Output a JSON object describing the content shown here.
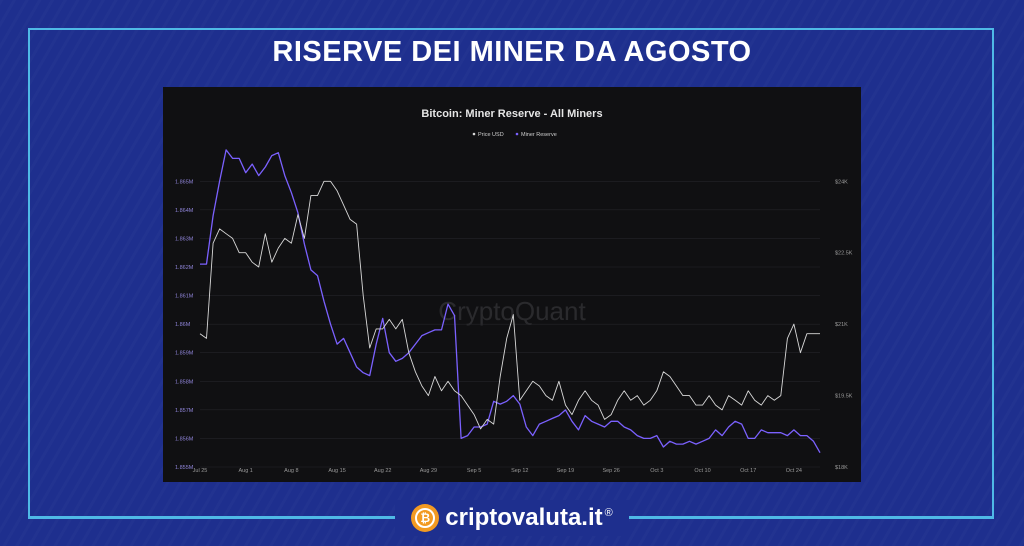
{
  "page": {
    "title": "RISERVE DEI MINER DA AGOSTO",
    "brand": "criptovaluta.it",
    "brand_mark": "®",
    "coin_icon": "bitcoin-coin-icon",
    "colors": {
      "background": "#1e2f8e",
      "frame": "#4fb9e6",
      "coin": "#f29a22"
    }
  },
  "chart_data": {
    "type": "line",
    "title": "Bitcoin: Miner Reserve - All Miners",
    "watermark": "CryptoQuant",
    "legend": [
      "Price USD",
      "Miner Reserve"
    ],
    "x_ticks": [
      "Jul 25",
      "Aug 1",
      "Aug 8",
      "Aug 15",
      "Aug 22",
      "Aug 29",
      "Sep 5",
      "Sep 12",
      "Sep 19",
      "Sep 26",
      "Oct 3",
      "Oct 10",
      "Oct 17",
      "Oct 24"
    ],
    "y_left_ticks": [
      "1.855M",
      "1.856M",
      "1.857M",
      "1.858M",
      "1.859M",
      "1.86M",
      "1.861M",
      "1.862M",
      "1.863M",
      "1.864M",
      "1.865M"
    ],
    "y_left_range": [
      1.855,
      1.8655
    ],
    "y_right_ticks": [
      "$18K",
      "$19.5K",
      "$21K",
      "$22.5K",
      "$24K"
    ],
    "y_right_range": [
      18000,
      24300
    ],
    "x_range": [
      0,
      95
    ],
    "series": [
      {
        "name": "Miner Reserve",
        "axis": "left",
        "color": "#7b61ff",
        "values": [
          1.8621,
          1.8621,
          1.8638,
          1.865,
          1.8661,
          1.8658,
          1.8658,
          1.8653,
          1.8656,
          1.8652,
          1.8655,
          1.8659,
          1.866,
          1.8652,
          1.8646,
          1.8639,
          1.8628,
          1.8619,
          1.8617,
          1.8608,
          1.86,
          1.8593,
          1.8595,
          1.859,
          1.8585,
          1.8583,
          1.8582,
          1.8593,
          1.8602,
          1.859,
          1.8587,
          1.8588,
          1.859,
          1.8593,
          1.8596,
          1.8597,
          1.8598,
          1.8598,
          1.8607,
          1.8603,
          1.856,
          1.8561,
          1.8564,
          1.8564,
          1.8565,
          1.8573,
          1.8572,
          1.8573,
          1.8575,
          1.8572,
          1.8564,
          1.8561,
          1.8565,
          1.8566,
          1.8567,
          1.8568,
          1.857,
          1.8566,
          1.8563,
          1.8568,
          1.8566,
          1.8565,
          1.8564,
          1.8566,
          1.8566,
          1.8564,
          1.8563,
          1.8561,
          1.856,
          1.856,
          1.8561,
          1.8557,
          1.8559,
          1.8558,
          1.8558,
          1.8559,
          1.8558,
          1.8559,
          1.856,
          1.8563,
          1.8561,
          1.8564,
          1.8566,
          1.8565,
          1.856,
          1.856,
          1.8563,
          1.8562,
          1.8562,
          1.8562,
          1.8561,
          1.8563,
          1.8561,
          1.8561,
          1.8559,
          1.8555
        ]
      },
      {
        "name": "Price USD",
        "axis": "right",
        "color": "#d8d8d8",
        "values": [
          20800,
          20700,
          22700,
          23000,
          22900,
          22800,
          22500,
          22500,
          22300,
          22200,
          22900,
          22300,
          22600,
          22800,
          22700,
          23300,
          22800,
          23700,
          23700,
          24000,
          24000,
          23800,
          23500,
          23200,
          23100,
          21600,
          20500,
          20900,
          20900,
          21100,
          20900,
          21100,
          20400,
          20000,
          19700,
          19500,
          19900,
          19600,
          19800,
          19600,
          19500,
          19300,
          19100,
          18800,
          19000,
          18900,
          19900,
          20700,
          21200,
          19400,
          19600,
          19800,
          19700,
          19500,
          19400,
          19800,
          19300,
          19100,
          19400,
          19600,
          19400,
          19300,
          19000,
          19100,
          19400,
          19600,
          19400,
          19500,
          19300,
          19400,
          19600,
          20000,
          19900,
          19700,
          19500,
          19500,
          19300,
          19300,
          19500,
          19300,
          19200,
          19500,
          19400,
          19300,
          19600,
          19400,
          19300,
          19500,
          19400,
          19500,
          20700,
          21000,
          20400,
          20800,
          20800,
          20800
        ]
      }
    ],
    "grid": "horizontal"
  }
}
